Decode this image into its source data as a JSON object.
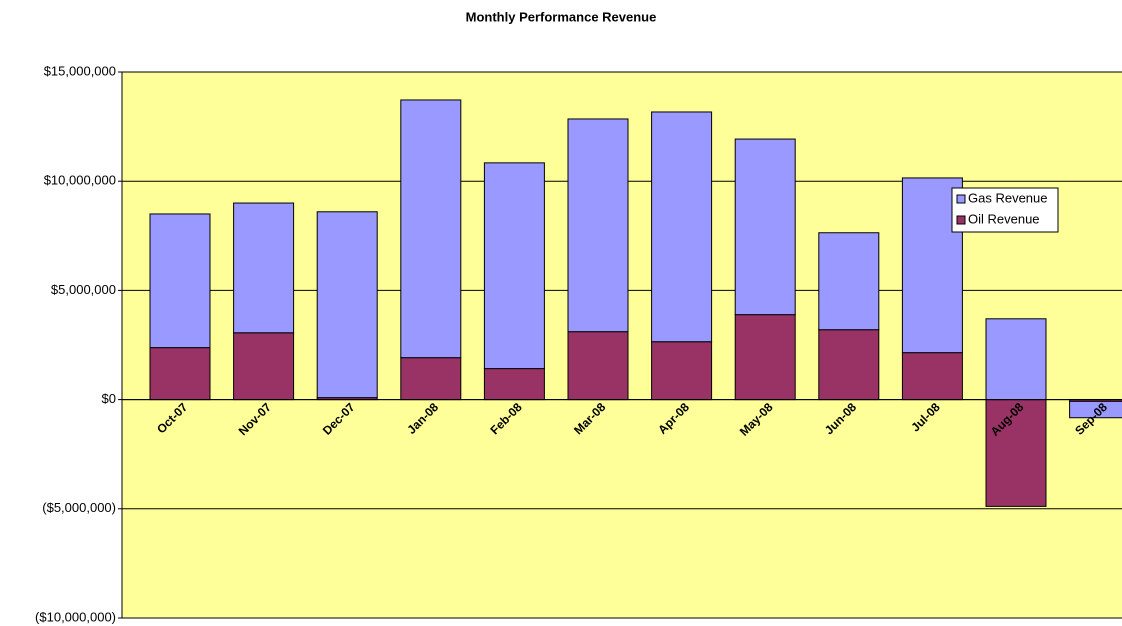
{
  "chart_data": {
    "type": "bar",
    "stacked": true,
    "title": "Monthly Performance Revenue",
    "categories": [
      "Oct-07",
      "Nov-07",
      "Dec-07",
      "Jan-08",
      "Feb-08",
      "Mar-08",
      "Apr-08",
      "May-08",
      "Jun-08",
      "Jul-08",
      "Aug-08",
      "Sep-08"
    ],
    "series": [
      {
        "name": "Oil Revenue",
        "color": "#993366",
        "values": [
          2380000,
          3060000,
          90000,
          1920000,
          1420000,
          3110000,
          2650000,
          3890000,
          3200000,
          2150000,
          -4890000,
          -80000
        ]
      },
      {
        "name": "Gas Revenue",
        "color": "#9999ff",
        "values": [
          6120000,
          5940000,
          8510000,
          11800000,
          9420000,
          9740000,
          10520000,
          8040000,
          4440000,
          8000000,
          3700000,
          -750000
        ]
      }
    ],
    "ylim": [
      -10000000,
      15000000
    ],
    "yticks": [
      {
        "value": -10000000,
        "label": "($10,000,000)"
      },
      {
        "value": -5000000,
        "label": "($5,000,000)"
      },
      {
        "value": 0,
        "label": "$0"
      },
      {
        "value": 5000000,
        "label": "$5,000,000"
      },
      {
        "value": 10000000,
        "label": "$10,000,000"
      },
      {
        "value": 15000000,
        "label": "$15,000,000"
      }
    ],
    "grid": true,
    "background": "#ffff99",
    "legend": "right"
  }
}
